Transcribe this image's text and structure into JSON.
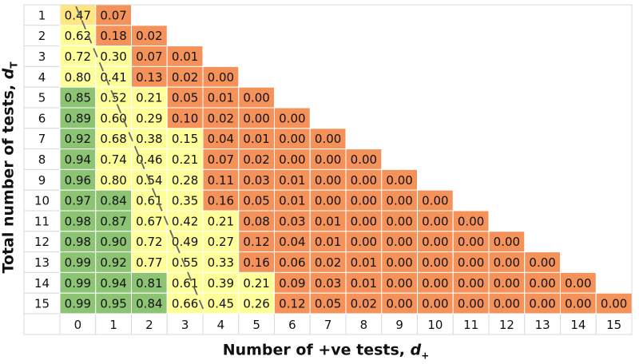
{
  "chart_data": {
    "type": "heatmap",
    "xlabel": "Number of +ve tests, d+",
    "ylabel": "Total number of tests, dT",
    "x_categories": [
      "0",
      "1",
      "2",
      "3",
      "4",
      "5",
      "6",
      "7",
      "8",
      "9",
      "10",
      "11",
      "12",
      "13",
      "14",
      "15"
    ],
    "y_categories": [
      "1",
      "2",
      "3",
      "4",
      "5",
      "6",
      "7",
      "8",
      "9",
      "10",
      "11",
      "12",
      "13",
      "14",
      "15"
    ],
    "rows": [
      [
        "0.47",
        "0.07"
      ],
      [
        "0.62",
        "0.18",
        "0.02"
      ],
      [
        "0.72",
        "0.30",
        "0.07",
        "0.01"
      ],
      [
        "0.80",
        "0.41",
        "0.13",
        "0.02",
        "0.00"
      ],
      [
        "0.85",
        "0.52",
        "0.21",
        "0.05",
        "0.01",
        "0.00"
      ],
      [
        "0.89",
        "0.60",
        "0.29",
        "0.10",
        "0.02",
        "0.00",
        "0.00"
      ],
      [
        "0.92",
        "0.68",
        "0.38",
        "0.15",
        "0.04",
        "0.01",
        "0.00",
        "0.00"
      ],
      [
        "0.94",
        "0.74",
        "0.46",
        "0.21",
        "0.07",
        "0.02",
        "0.00",
        "0.00",
        "0.00"
      ],
      [
        "0.96",
        "0.80",
        "0.54",
        "0.28",
        "0.11",
        "0.03",
        "0.01",
        "0.00",
        "0.00",
        "0.00"
      ],
      [
        "0.97",
        "0.84",
        "0.61",
        "0.35",
        "0.16",
        "0.05",
        "0.01",
        "0.00",
        "0.00",
        "0.00",
        "0.00"
      ],
      [
        "0.98",
        "0.87",
        "0.67",
        "0.42",
        "0.21",
        "0.08",
        "0.03",
        "0.01",
        "0.00",
        "0.00",
        "0.00",
        "0.00"
      ],
      [
        "0.98",
        "0.90",
        "0.72",
        "0.49",
        "0.27",
        "0.12",
        "0.04",
        "0.01",
        "0.00",
        "0.00",
        "0.00",
        "0.00",
        "0.00"
      ],
      [
        "0.99",
        "0.92",
        "0.77",
        "0.55",
        "0.33",
        "0.16",
        "0.06",
        "0.02",
        "0.01",
        "0.00",
        "0.00",
        "0.00",
        "0.00",
        "0.00"
      ],
      [
        "0.99",
        "0.94",
        "0.81",
        "0.61",
        "0.39",
        "0.21",
        "0.09",
        "0.03",
        "0.01",
        "0.00",
        "0.00",
        "0.00",
        "0.00",
        "0.00",
        "0.00"
      ],
      [
        "0.99",
        "0.95",
        "0.84",
        "0.66",
        "0.45",
        "0.26",
        "0.12",
        "0.05",
        "0.02",
        "0.00",
        "0.00",
        "0.00",
        "0.00",
        "0.00",
        "0.00",
        "0.00"
      ]
    ],
    "cell_colors": [
      [
        "#ffe680",
        "#f4925a"
      ],
      [
        "#ffff99",
        "#f4925a",
        "#f4925a"
      ],
      [
        "#ffff99",
        "#ffff99",
        "#f4925a",
        "#f4925a"
      ],
      [
        "#ffff99",
        "#ffff99",
        "#f4925a",
        "#f4925a",
        "#f4925a"
      ],
      [
        "#8cc474",
        "#ffff99",
        "#ffff99",
        "#f4925a",
        "#f4925a",
        "#f4925a"
      ],
      [
        "#8cc474",
        "#ffff99",
        "#ffff99",
        "#f4925a",
        "#f4925a",
        "#f4925a",
        "#f4925a"
      ],
      [
        "#8cc474",
        "#ffff99",
        "#ffff99",
        "#ffff99",
        "#f4925a",
        "#f4925a",
        "#f4925a",
        "#f4925a"
      ],
      [
        "#8cc474",
        "#ffff99",
        "#ffff99",
        "#ffff99",
        "#f4925a",
        "#f4925a",
        "#f4925a",
        "#f4925a",
        "#f4925a"
      ],
      [
        "#8cc474",
        "#ffff99",
        "#ffff99",
        "#ffff99",
        "#f4925a",
        "#f4925a",
        "#f4925a",
        "#f4925a",
        "#f4925a",
        "#f4925a"
      ],
      [
        "#8cc474",
        "#8cc474",
        "#ffff99",
        "#ffff99",
        "#f4925a",
        "#f4925a",
        "#f4925a",
        "#f4925a",
        "#f4925a",
        "#f4925a",
        "#f4925a"
      ],
      [
        "#8cc474",
        "#8cc474",
        "#ffff99",
        "#ffff99",
        "#ffff99",
        "#f4925a",
        "#f4925a",
        "#f4925a",
        "#f4925a",
        "#f4925a",
        "#f4925a",
        "#f4925a"
      ],
      [
        "#8cc474",
        "#8cc474",
        "#ffff99",
        "#ffff99",
        "#ffff99",
        "#f4925a",
        "#f4925a",
        "#f4925a",
        "#f4925a",
        "#f4925a",
        "#f4925a",
        "#f4925a",
        "#f4925a"
      ],
      [
        "#8cc474",
        "#8cc474",
        "#ffff99",
        "#ffff99",
        "#ffff99",
        "#f4925a",
        "#f4925a",
        "#f4925a",
        "#f4925a",
        "#f4925a",
        "#f4925a",
        "#f4925a",
        "#f4925a",
        "#f4925a"
      ],
      [
        "#8cc474",
        "#8cc474",
        "#8cc474",
        "#ffff99",
        "#ffff99",
        "#ffff99",
        "#f4925a",
        "#f4925a",
        "#f4925a",
        "#f4925a",
        "#f4925a",
        "#f4925a",
        "#f4925a",
        "#f4925a",
        "#f4925a"
      ],
      [
        "#8cc474",
        "#8cc474",
        "#8cc474",
        "#ffff99",
        "#ffff99",
        "#ffff99",
        "#f4925a",
        "#f4925a",
        "#f4925a",
        "#f4925a",
        "#f4925a",
        "#f4925a",
        "#f4925a",
        "#f4925a",
        "#f4925a",
        "#f4925a"
      ]
    ],
    "boundary_line": {
      "style": "dashed",
      "color": "#666666",
      "from": [
        1,
        1
      ],
      "to": [
        4,
        15
      ]
    },
    "grid": true
  }
}
